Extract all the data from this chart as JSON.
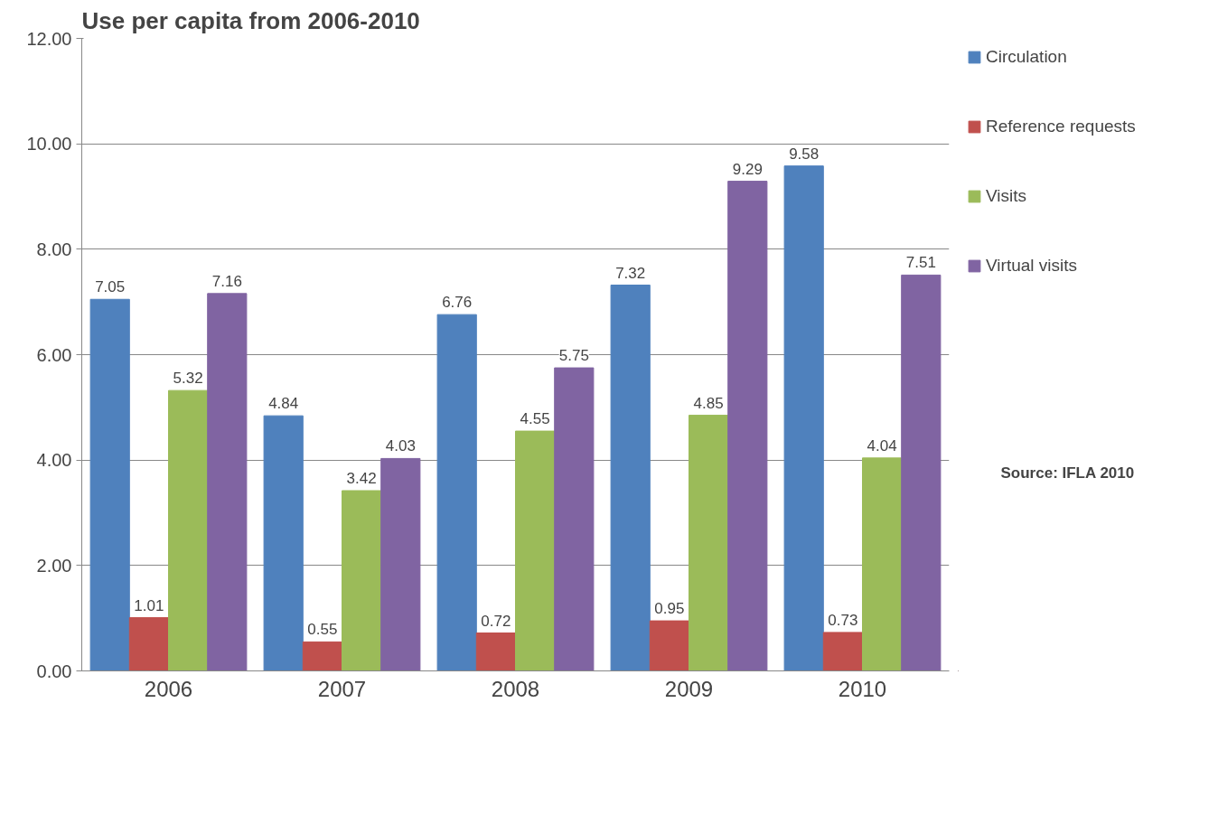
{
  "chart_data": {
    "type": "bar",
    "title": "Use per capita from 2006-2010",
    "categories": [
      "2006",
      "2007",
      "2008",
      "2009",
      "2010"
    ],
    "series": [
      {
        "name": "Circulation",
        "color": "#4f81bd",
        "values": [
          7.05,
          4.84,
          6.76,
          7.32,
          9.58
        ]
      },
      {
        "name": "Reference requests",
        "color": "#c0504d",
        "values": [
          1.01,
          0.55,
          0.72,
          0.95,
          0.73
        ]
      },
      {
        "name": "Visits",
        "color": "#9bbb59",
        "values": [
          5.32,
          3.42,
          4.55,
          4.85,
          4.04
        ]
      },
      {
        "name": "Virtual visits",
        "color": "#8064a2",
        "values": [
          7.16,
          4.03,
          5.75,
          9.29,
          7.51
        ]
      }
    ],
    "ylim": [
      0,
      12
    ],
    "yticks": [
      {
        "value": 0,
        "label": "0.00"
      },
      {
        "value": 2,
        "label": "2.00"
      },
      {
        "value": 4,
        "label": "4.00"
      },
      {
        "value": 6,
        "label": "6.00"
      },
      {
        "value": 8,
        "label": "8.00"
      },
      {
        "value": 10,
        "label": "10.00"
      },
      {
        "value": 12,
        "label": "12.00"
      }
    ],
    "grid": "y",
    "legend": "right",
    "data_labels": true,
    "annotations": [
      "Source: IFLA 2010"
    ]
  }
}
